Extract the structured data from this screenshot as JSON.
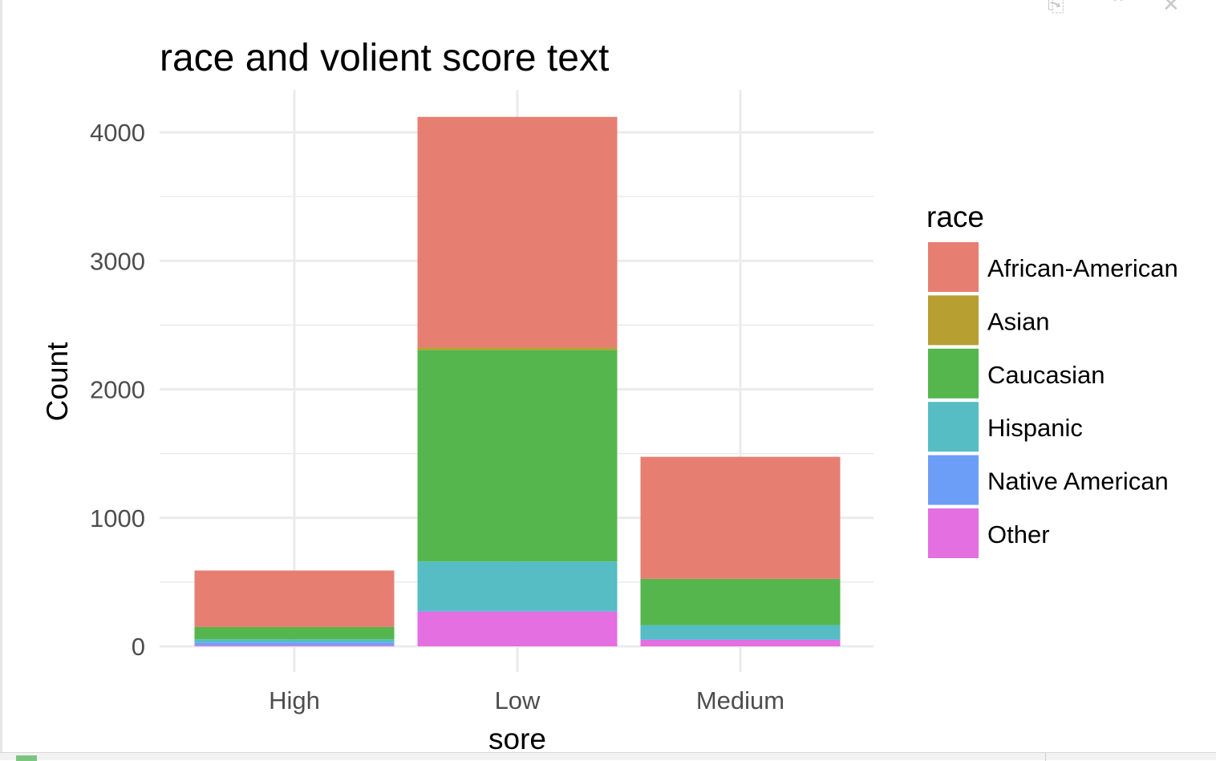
{
  "window_controls": [
    {
      "icon": "export-icon",
      "glyph": "⎘"
    },
    {
      "icon": "collapse-up-icon",
      "glyph": "⌃"
    },
    {
      "icon": "close-icon",
      "glyph": "✕"
    }
  ],
  "chart_data": {
    "type": "bar",
    "stacked": true,
    "title": "race and volient score text",
    "xlabel": "sore",
    "ylabel": "Count",
    "categories": [
      "High",
      "Low",
      "Medium"
    ],
    "ylim": [
      0,
      4300
    ],
    "yticks": [
      0,
      1000,
      2000,
      3000,
      4000
    ],
    "grid": true,
    "legend": {
      "title": "race",
      "position": "right"
    },
    "series": [
      {
        "name": "Other",
        "color": "#E36FE0",
        "values": [
          8,
          270,
          50
        ]
      },
      {
        "name": "Native American",
        "color": "#6D9EF7",
        "values": [
          22,
          5,
          5
        ]
      },
      {
        "name": "Hispanic",
        "color": "#55BDC3",
        "values": [
          25,
          385,
          110
        ]
      },
      {
        "name": "Caucasian",
        "color": "#55B64E",
        "values": [
          95,
          1645,
          360
        ]
      },
      {
        "name": "Asian",
        "color": "#B79F32",
        "values": [
          0,
          20,
          0
        ]
      },
      {
        "name": "African-American",
        "color": "#E77E72",
        "values": [
          440,
          1795,
          950
        ]
      }
    ],
    "legend_order": [
      "African-American",
      "Asian",
      "Caucasian",
      "Hispanic",
      "Native American",
      "Other"
    ]
  }
}
